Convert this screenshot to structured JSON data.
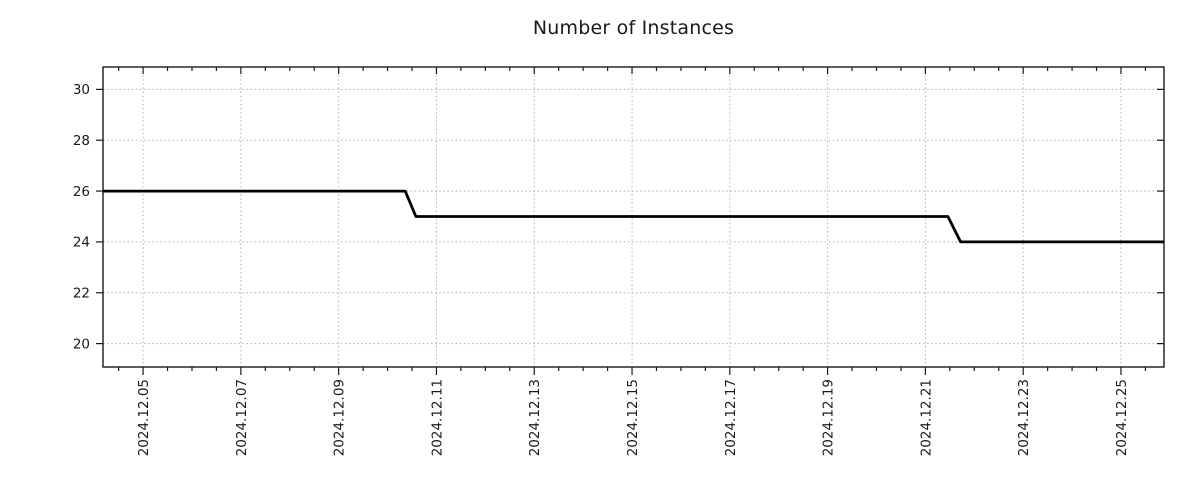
{
  "title": "Number of Instances",
  "chart_data": {
    "type": "line",
    "title": "Number of Instances",
    "xlabel": "",
    "ylabel": "",
    "legend": "none",
    "grid": {
      "visible": true,
      "style": "dotted",
      "color": "#b0b0b0"
    },
    "x_axis": {
      "kind": "time",
      "tick_labels": [
        "2024.12.05",
        "2024.12.07",
        "2024.12.09",
        "2024.12.11",
        "2024.12.13",
        "2024.12.15",
        "2024.12.17",
        "2024.12.19",
        "2024.12.21",
        "2024.12.23",
        "2024.12.25"
      ],
      "tick_day_offsets": [
        0,
        2,
        4,
        6,
        8,
        10,
        12,
        14,
        16,
        18,
        20
      ],
      "minor_tick_interval_days": 0.5,
      "xlim_day_offsets": [
        -0.82,
        20.88
      ],
      "label_rotation_degrees": 90
    },
    "y_axis": {
      "ticks": [
        20,
        22,
        24,
        26,
        28,
        30
      ],
      "tick_labels": [
        "20",
        "22",
        "24",
        "26",
        "28",
        "30"
      ],
      "ylim": [
        19.08,
        30.88
      ]
    },
    "series": [
      {
        "name": "Number of Instances",
        "color": "#000000",
        "line_width": 2.8,
        "points": [
          {
            "day": -0.82,
            "value": 26
          },
          {
            "day": 5.36,
            "value": 26
          },
          {
            "day": 5.58,
            "value": 25
          },
          {
            "day": 16.46,
            "value": 25
          },
          {
            "day": 16.72,
            "value": 24
          },
          {
            "day": 20.88,
            "value": 24
          }
        ],
        "steps_description": [
          {
            "value": 26,
            "from": "2024-12-04 ~04:00",
            "to": "2024-12-10 ~09:00"
          },
          {
            "value": 25,
            "from": "2024-12-10 ~14:00",
            "to": "2024-12-21 ~11:00"
          },
          {
            "value": 24,
            "from": "2024-12-21 ~17:00",
            "to": "2024-12-25 ~21:00"
          }
        ]
      }
    ]
  }
}
